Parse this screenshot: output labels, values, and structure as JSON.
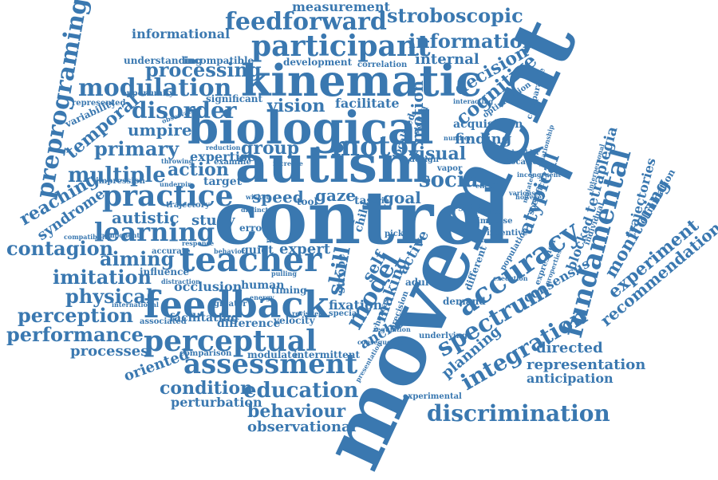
{
  "style": {
    "text_color": "#3a78b0",
    "background": "#ffffff"
  },
  "words": {
    "movement": "movement",
    "control": "control",
    "autism": "autism",
    "biological": "biological",
    "kinematic": "kinematic",
    "teacher": "teacher",
    "feedback": "feedback",
    "participant": "participant",
    "feedforward": "feedforward",
    "practice": "practice",
    "perceptual": "perceptual",
    "assessment": "assessment",
    "motor": "motor",
    "accuracy": "accuracy",
    "fundamental": "fundamental",
    "spectrum": "spectrum",
    "integration": "integration",
    "discrimination": "discrimination",
    "learning": "learning",
    "modulation": "modulation",
    "processing": "processing",
    "stroboscopic": "stroboscopic",
    "information": "information",
    "measurement": "measurement",
    "preprograming": "preprograming",
    "disorder": "disorder",
    "temporal": "temporal",
    "primary": "primary",
    "multiple": "multiple",
    "action": "action",
    "group": "group",
    "umpire": "umpire",
    "reaching": "reaching",
    "syndrome": "syndrome",
    "contagion": "contagion",
    "aiming": "aiming",
    "imitation": "imitation",
    "physical": "physical",
    "perception": "perception",
    "performance": "performance",
    "processes": "processes",
    "oriented": "oriented",
    "condition": "condition",
    "perturbation": "perturbation",
    "education": "education",
    "behaviour": "behaviour",
    "observational": "observational",
    "autistic": "autistic",
    "speed": "speed",
    "gaze": "gaze",
    "goal": "goal",
    "social": "social",
    "visual": "visual",
    "vision": "vision",
    "decision": "decision",
    "cognitive": "cognitive",
    "atypical": "atypical",
    "tetraplegia": "tetraplegia",
    "monitoring": "monitoring",
    "trajectories": "trajectories",
    "experiment": "experiment",
    "recommendation": "recommendation",
    "representation": "representation",
    "directed": "directed",
    "anticipation": "anticipation",
    "planning": "planning",
    "consensus": "consensus",
    "blocked": "blocked",
    "model": "model",
    "skill": "skill",
    "self": "self",
    "making": "making",
    "active": "active",
    "anchor": "anchor",
    "expert": "expert",
    "study": "study",
    "occlusion": "occlusion",
    "difference": "difference",
    "fixation": "fixation",
    "finding": "finding",
    "acquisition": "acquisition",
    "motion": "motion",
    "internal": "internal",
    "expertise": "expertise",
    "informational": "informational",
    "understanding": "understanding",
    "incompatible": "incompatible",
    "development": "development",
    "correlation": "correlation",
    "significant": "significant",
    "facilitate": "facilitate",
    "impression": "impression",
    "target": "target",
    "influence": "influence",
    "facilitating": "facilitating",
    "velocity": "velocity",
    "comparison": "comparison",
    "modulate": "modulate",
    "intermittent": "intermittent",
    "associated": "associated",
    "human": "human",
    "timing": "timing",
    "quiet": "quiet",
    "experimental": "experimental",
    "demand": "demand",
    "different": "different",
    "underlying": "underlying",
    "error": "error",
    "novice": "novice",
    "tool": "tool",
    "task": "task",
    "trial": "trial",
    "child": "child",
    "year": "year",
    "adult": "adult",
    "strobe": "strobe",
    "whereas": "whereas",
    "precision": "precision",
    "localised": "localised",
    "skilled": "skilled",
    "design": "design",
    "aging": "aging",
    "variability": "variability",
    "represented": "represented",
    "opportunity": "opportunity",
    "observation": "observation",
    "compatibility": "compatibility",
    "accurate": "accurate",
    "greater": "greater",
    "international": "international",
    "trajectory": "trajectory",
    "underpin": "underpin",
    "examine": "examine",
    "throwing": "throwing",
    "increase": "increase",
    "response": "response",
    "component": "component",
    "impulse": "impulse",
    "incentive": "incentive",
    "population": "population",
    "execution": "execution",
    "location": "location",
    "shoulder": "shoulder",
    "optimization": "optimization",
    "interacting": "interacting",
    "incongruent": "incongruent",
    "various": "various",
    "individual": "individual",
    "elimination": "elimination",
    "interpersonal": "interpersonal",
    "relationship": "relationship",
    "comparable": "comparable",
    "specificity": "specificity",
    "expression": "expression",
    "properties": "properties",
    "consequence": "consequence",
    "presentation": "presentation",
    "revisited": "revisited",
    "special": "special",
    "distraction": "distraction",
    "distinct": "distinct",
    "mutated": "mutated",
    "involve": "involve",
    "reduction": "reduction",
    "number": "number",
    "vapor": "vapor",
    "chance": "chance",
    "pick": "pick",
    "effective": "effective",
    "energy": "energy",
    "behavior": "behavior",
    "pulling": "pulling",
    "wicket": "wicket",
    "regulation": "regulation",
    "however": "however"
  }
}
